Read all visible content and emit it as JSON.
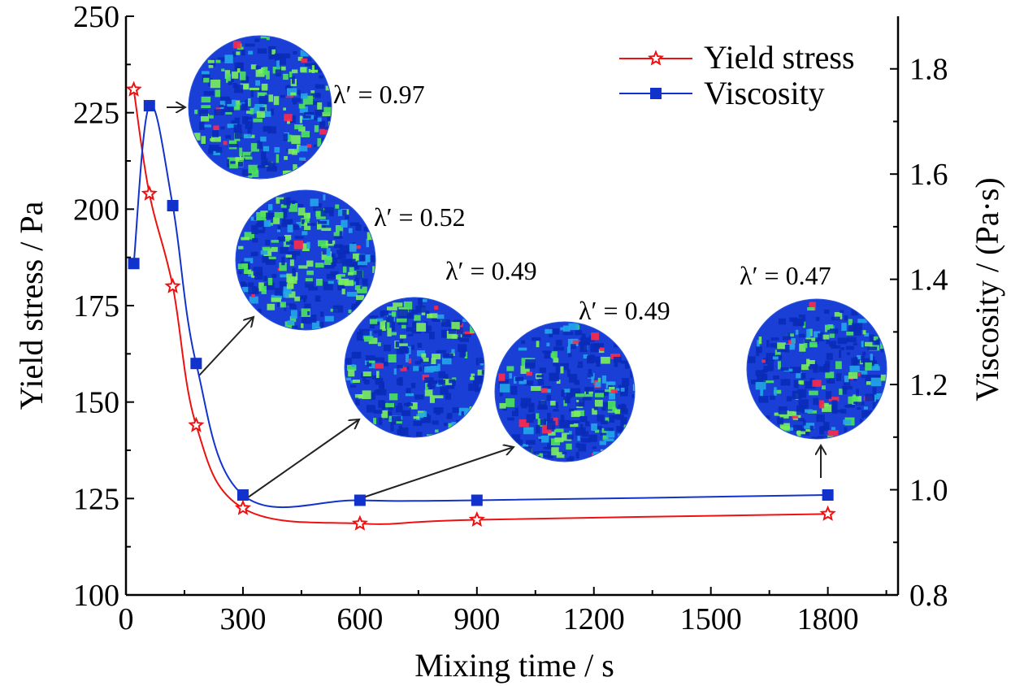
{
  "chart_data": {
    "type": "line",
    "xlabel": "Mixing time / s",
    "ylabel_left": "Yield stress / Pa",
    "ylabel_right": "Viscosity / (Pa·s)",
    "xlim": [
      0,
      1980
    ],
    "ylim_left": [
      100,
      250
    ],
    "ylim_right": [
      0.8,
      1.9
    ],
    "x_ticks": [
      0,
      300,
      600,
      900,
      1200,
      1500,
      1800
    ],
    "y_left_ticks": [
      100,
      125,
      150,
      175,
      200,
      225,
      250
    ],
    "y_right_ticks": [
      0.8,
      1.0,
      1.2,
      1.4,
      1.6,
      1.8
    ],
    "grid": false,
    "legend_position": "top-right",
    "series": [
      {
        "name": "Yield stress",
        "axis": "left",
        "color": "#ee1111",
        "marker": "star",
        "x": [
          20,
          60,
          120,
          180,
          300,
          600,
          900,
          1800
        ],
        "y": [
          231,
          204,
          180,
          144,
          122.5,
          118.5,
          119.5,
          121
        ]
      },
      {
        "name": "Viscosity",
        "axis": "right",
        "color": "#1133cc",
        "marker": "square",
        "x": [
          20,
          60,
          120,
          180,
          300,
          600,
          900,
          1800
        ],
        "y": [
          1.43,
          1.73,
          1.54,
          1.24,
          0.99,
          0.98,
          0.98,
          0.99
        ]
      }
    ],
    "annotations": [
      {
        "label": "λ′ = 0.97"
      },
      {
        "label": "λ′ = 0.52"
      },
      {
        "label": "λ′ = 0.49"
      },
      {
        "label": "λ′ = 0.49"
      },
      {
        "label": "λ′ = 0.47"
      }
    ]
  }
}
